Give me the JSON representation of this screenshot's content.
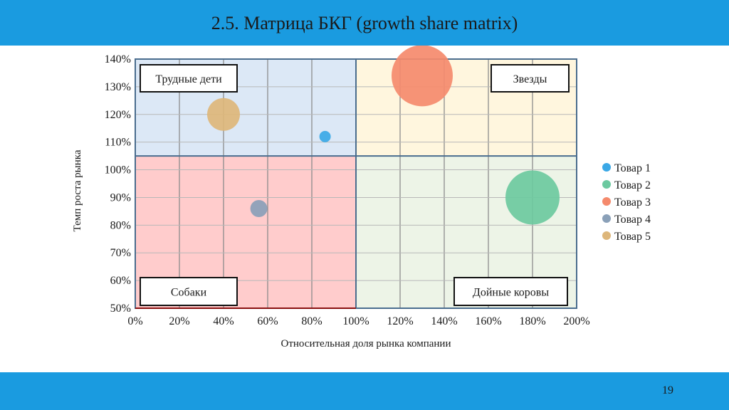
{
  "slide": {
    "title": "2.5. Матрица БКГ (growth share matrix)",
    "page_number": "19"
  },
  "colors": {
    "bar": "#1a9be0",
    "q_problem": "#dce8f6",
    "q_star": "#fff6de",
    "q_dog": "#ffcccc",
    "q_cow": "#edf4e7",
    "frame": "#4a6d8e",
    "grid": "#8c8c8c"
  },
  "chart_data": {
    "type": "scatter",
    "xlabel": "Относительная доля рынка компании",
    "ylabel": "Темп роста рынка",
    "xlim": [
      0,
      200
    ],
    "ylim": [
      50,
      140
    ],
    "x_ticks": [
      0,
      20,
      40,
      60,
      80,
      100,
      120,
      140,
      160,
      180,
      200
    ],
    "y_ticks": [
      50,
      60,
      70,
      80,
      90,
      100,
      110,
      120,
      130,
      140
    ],
    "x_split": 100,
    "y_split": 105,
    "grid": true,
    "legend_position": "right",
    "quadrant_labels": {
      "problem_children": "Трудные дети",
      "stars": "Звезды",
      "dogs": "Собаки",
      "cash_cows": "Дойные коровы"
    },
    "series": [
      {
        "name": "Товар 1",
        "x": 86,
        "y": 112,
        "size": 8,
        "color": "#3aa8e6"
      },
      {
        "name": "Товар 2",
        "x": 180,
        "y": 90,
        "size": 38,
        "color": "#6cc9a0"
      },
      {
        "name": "Товар 3",
        "x": 130,
        "y": 134,
        "size": 43,
        "color": "#f58a6c"
      },
      {
        "name": "Товар 4",
        "x": 56,
        "y": 86,
        "size": 12,
        "color": "#8aa0b8"
      },
      {
        "name": "Товар 5",
        "x": 40,
        "y": 120,
        "size": 23,
        "color": "#ddb67a"
      }
    ]
  }
}
